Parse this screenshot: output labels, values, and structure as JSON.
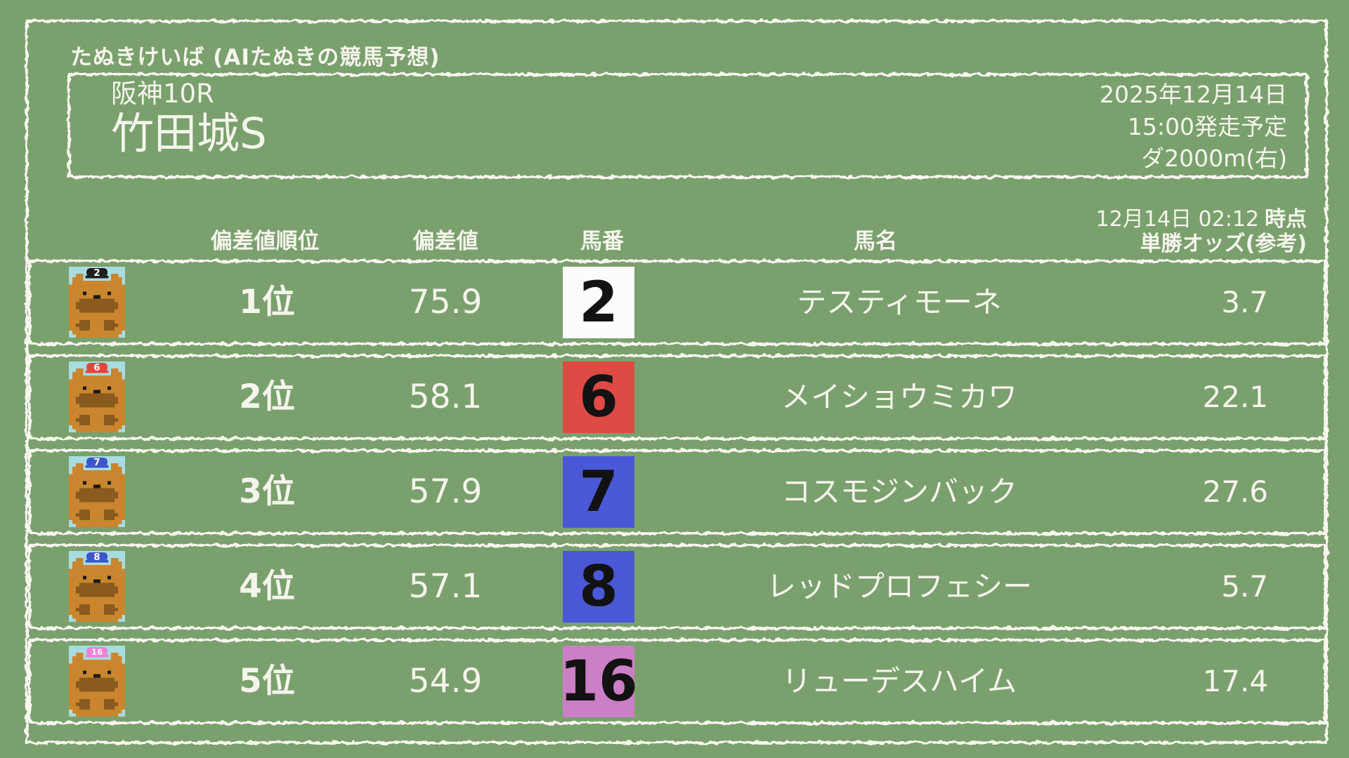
{
  "app": {
    "title": "たぬきけいば (AIたぬきの競馬予想)"
  },
  "race": {
    "track_race": "阪神10R",
    "name": "竹田城S",
    "date": "2025年12月14日",
    "start_time": "15:00発走予定",
    "course": "ダ2000m(右)"
  },
  "table": {
    "headers": {
      "rank": "偏差値順位",
      "value": "偏差値",
      "number": "馬番",
      "name": "馬名",
      "odds_time": "12月14日 02:12",
      "odds_time_suffix": "時点",
      "odds_label": "単勝オッズ(参考)"
    },
    "rows": [
      {
        "rank": "1位",
        "value": "75.9",
        "number": "2",
        "name": "テスティモーネ",
        "odds": "3.7",
        "badge_bg": "#FCFCFC",
        "badge_fg": "#121212",
        "cap_color": "#1F1F1F"
      },
      {
        "rank": "2位",
        "value": "58.1",
        "number": "6",
        "name": "メイショウミカワ",
        "odds": "22.1",
        "badge_bg": "#DF4A44",
        "badge_fg": "#121212",
        "cap_color": "#E8433E"
      },
      {
        "rank": "3位",
        "value": "57.9",
        "number": "7",
        "name": "コスモジンバック",
        "odds": "27.6",
        "badge_bg": "#4A58D8",
        "badge_fg": "#121212",
        "cap_color": "#3D55CC"
      },
      {
        "rank": "4位",
        "value": "57.1",
        "number": "8",
        "name": "レッドプロフェシー",
        "odds": "5.7",
        "badge_bg": "#4A58D8",
        "badge_fg": "#121212",
        "cap_color": "#3D55CC"
      },
      {
        "rank": "5位",
        "value": "54.9",
        "number": "16",
        "name": "リューデスハイム",
        "odds": "17.4",
        "badge_bg": "#CB7FC5",
        "badge_fg": "#121212",
        "cap_color": "#EC82D6"
      }
    ]
  },
  "colors": {
    "background": "#7AA06E",
    "frame": "#F7F6EE",
    "text": "#F5F5EC",
    "avatar_bg": "#A8DCE1",
    "tanuki_body": "#C9862E",
    "tanuki_dark": "#8A5A1F",
    "tanuki_black": "#1A1A1A"
  }
}
